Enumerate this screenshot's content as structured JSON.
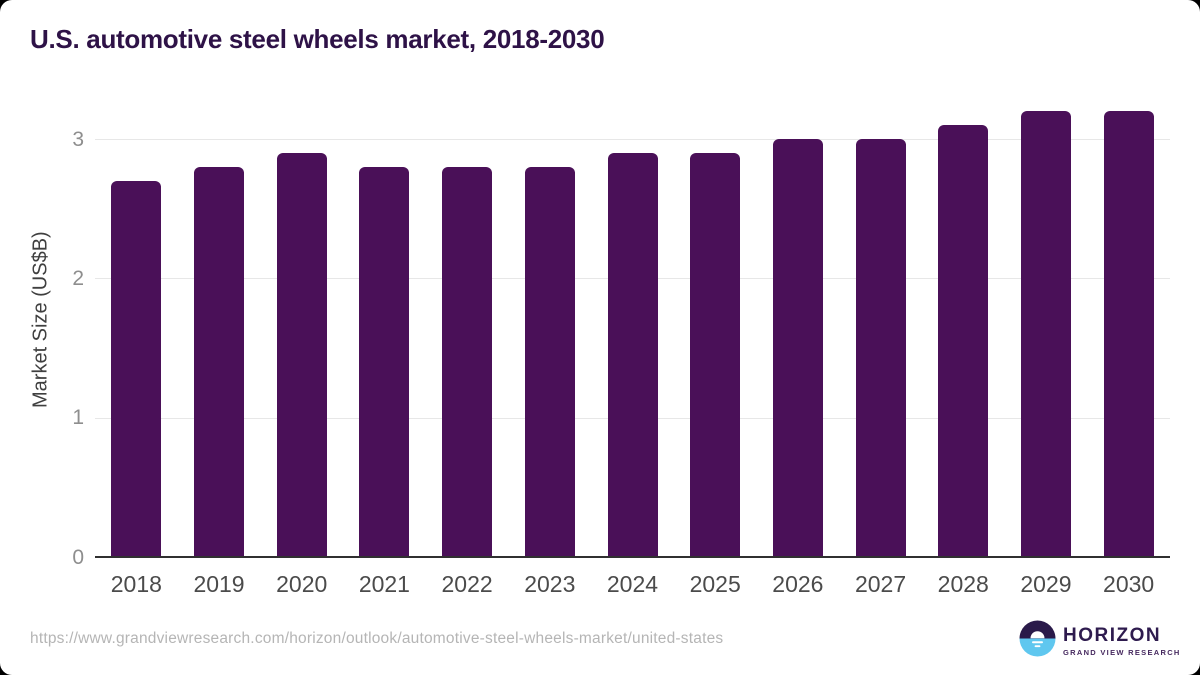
{
  "title": "U.S. automotive steel wheels market, 2018-2030",
  "chart_data": {
    "type": "bar",
    "categories": [
      "2018",
      "2019",
      "2020",
      "2021",
      "2022",
      "2023",
      "2024",
      "2025",
      "2026",
      "2027",
      "2028",
      "2029",
      "2030"
    ],
    "values": [
      2.7,
      2.8,
      2.9,
      2.8,
      2.8,
      2.8,
      2.9,
      2.9,
      3.0,
      3.0,
      3.1,
      3.2,
      3.2
    ],
    "title": "U.S. automotive steel wheels market, 2018-2030",
    "xlabel": "",
    "ylabel": "Market Size (US$B)",
    "ylim": [
      0,
      3
    ],
    "yticks": [
      0,
      1,
      2,
      3
    ],
    "grid": "horizontal",
    "legend": "none",
    "bar_color": "#4a1058"
  },
  "colors": {
    "title": "#2e1247",
    "bar": "#4a1058",
    "axis_line": "#303030",
    "gridline": "#e7e7e7",
    "y_tick_label": "#8e8e8e",
    "x_tick_label": "#4b4b4b",
    "logo_dark_purple": "#2e1b4e",
    "logo_blue": "#5fc7ef"
  },
  "footer": {
    "source_url": "https://www.grandviewresearch.com/horizon/outlook/automotive-steel-wheels-market/united-states",
    "logo": {
      "brand": "HORIZON",
      "sub_brand": "GRAND VIEW RESEARCH"
    }
  }
}
